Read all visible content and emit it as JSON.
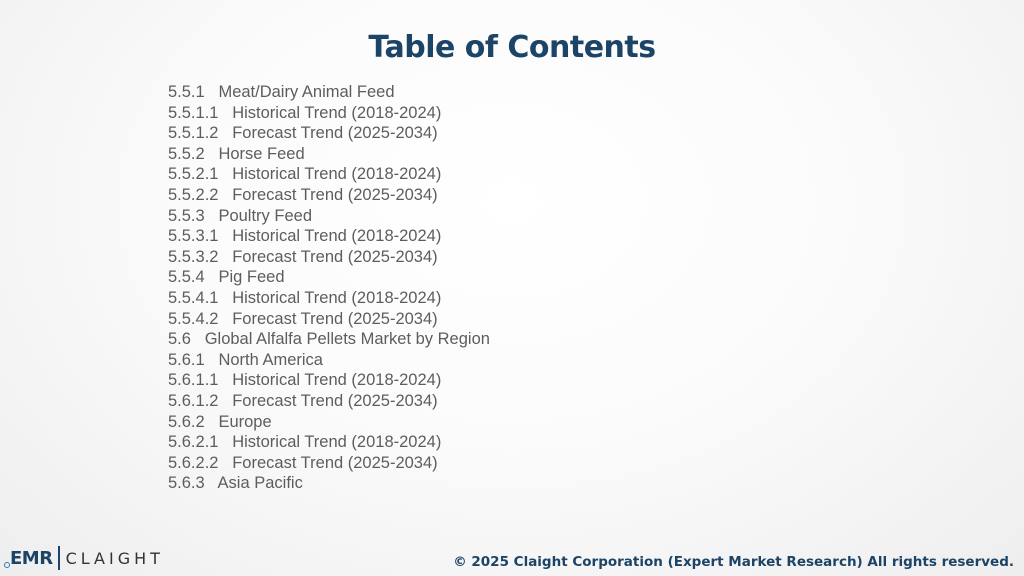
{
  "title": "Table of Contents",
  "toc_items": [
    "5.5.1   Meat/Dairy Animal Feed",
    "5.5.1.1   Historical Trend (2018-2024)",
    "5.5.1.2   Forecast Trend (2025-2034)",
    "5.5.2   Horse Feed",
    "5.5.2.1   Historical Trend (2018-2024)",
    "5.5.2.2   Forecast Trend (2025-2034)",
    "5.5.3   Poultry Feed",
    "5.5.3.1   Historical Trend (2018-2024)",
    "5.5.3.2   Forecast Trend (2025-2034)",
    "5.5.4   Pig Feed",
    "5.5.4.1   Historical Trend (2018-2024)",
    "5.5.4.2   Forecast Trend (2025-2034)",
    "5.6   Global Alfalfa Pellets Market by Region",
    "5.6.1   North America",
    "5.6.1.1   Historical Trend (2018-2024)",
    "5.6.1.2   Forecast Trend (2025-2034)",
    "5.6.2   Europe",
    "5.6.2.1   Historical Trend (2018-2024)",
    "5.6.2.2   Forecast Trend (2025-2034)",
    "5.6.3   Asia Pacific"
  ],
  "logo": {
    "mark": "EMR",
    "name": "CLAIGHT"
  },
  "footer": "© 2025 Claight Corporation (Expert Market Research) All rights reserved.",
  "colors": {
    "title": "#1c4466",
    "body_text": "#5d5d5d"
  }
}
